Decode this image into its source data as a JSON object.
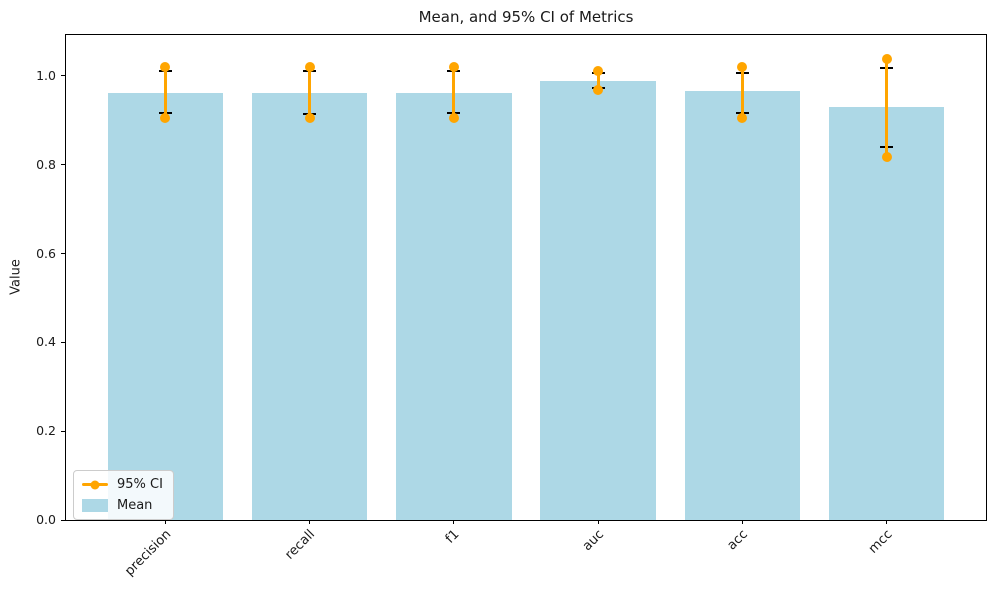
{
  "chart_data": {
    "type": "bar",
    "title": "Mean, and 95% CI of Metrics",
    "ylabel": "Value",
    "xlabel": "",
    "categories": [
      "precision",
      "recall",
      "f1",
      "auc",
      "acc",
      "mcc"
    ],
    "series": [
      {
        "name": "Mean",
        "type": "bar",
        "color": "#ADD8E6",
        "values": [
          0.962,
          0.962,
          0.962,
          0.988,
          0.965,
          0.93
        ]
      },
      {
        "name": "95% CI",
        "type": "errorbar",
        "color": "#FFA500",
        "cap_color": "#000000",
        "ci_low": [
          0.904,
          0.904,
          0.905,
          0.969,
          0.906,
          0.818
        ],
        "ci_high": [
          1.021,
          1.02,
          1.021,
          1.01,
          1.019,
          1.038
        ],
        "cap_low": [
          0.916,
          0.915,
          0.916,
          0.973,
          0.916,
          0.84
        ],
        "cap_high": [
          1.01,
          1.01,
          1.01,
          1.006,
          1.007,
          1.017
        ]
      }
    ],
    "ylim": [
      0,
      1.092
    ],
    "yticks": [
      0.0,
      0.2,
      0.4,
      0.6,
      0.8,
      1.0
    ],
    "grid": false,
    "legend_position": "lower left",
    "legend_order": [
      "95% CI",
      "Mean"
    ]
  }
}
